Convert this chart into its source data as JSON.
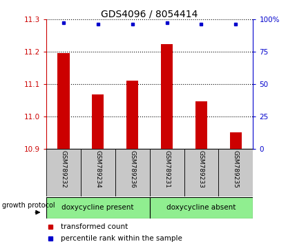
{
  "title": "GDS4096 / 8054414",
  "samples": [
    "GSM789232",
    "GSM789234",
    "GSM789236",
    "GSM789231",
    "GSM789233",
    "GSM789235"
  ],
  "bar_values": [
    11.197,
    11.068,
    11.112,
    11.223,
    11.048,
    10.952
  ],
  "bar_bottom": 10.9,
  "percentile_values": [
    97.5,
    96.5,
    96.5,
    97.5,
    96.5,
    96.5
  ],
  "ylim_left": [
    10.9,
    11.3
  ],
  "ylim_right": [
    0,
    100
  ],
  "yticks_left": [
    10.9,
    11.0,
    11.1,
    11.2,
    11.3
  ],
  "yticks_right": [
    0,
    25,
    50,
    75,
    100
  ],
  "bar_color": "#cc0000",
  "dot_color": "#0000cc",
  "group1_label": "doxycycline present",
  "group2_label": "doxycycline absent",
  "group_bg_color": "#90ee90",
  "tick_label_bg": "#c8c8c8",
  "legend_label1": "transformed count",
  "legend_label2": "percentile rank within the sample",
  "growth_protocol_label": "growth protocol",
  "title_fontsize": 10,
  "tick_fontsize": 7.5,
  "axis_color_left": "#cc0000",
  "axis_color_right": "#0000cc"
}
